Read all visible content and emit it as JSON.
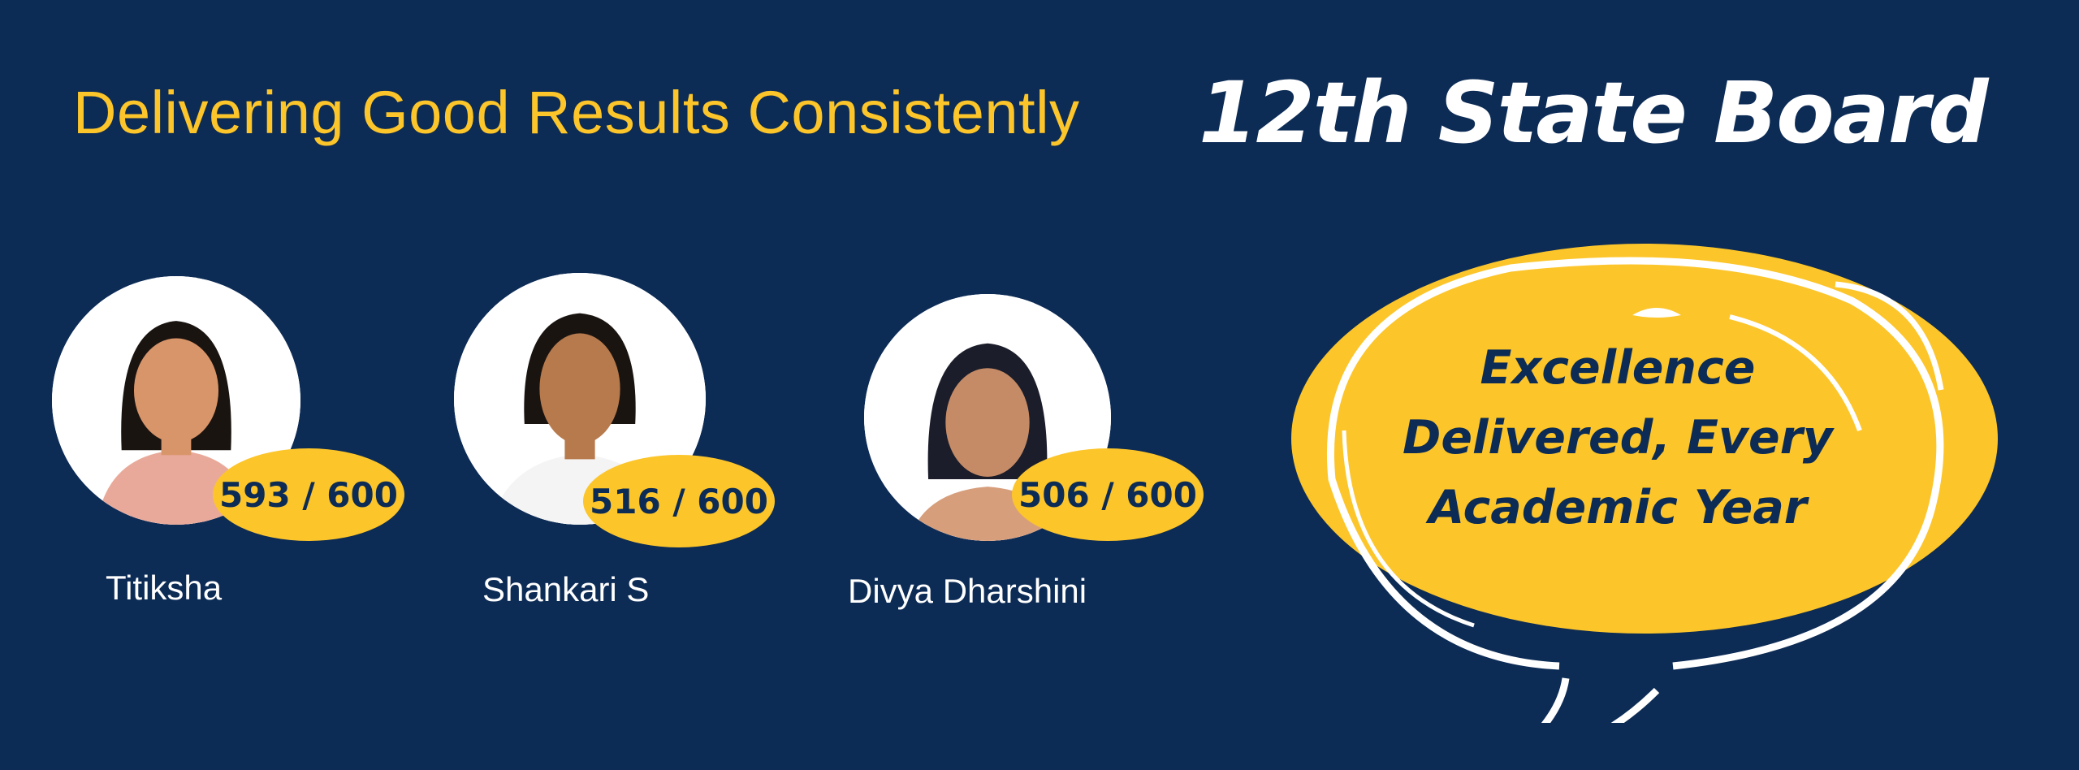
{
  "header": {
    "tagline": "Delivering Good Results Consistently",
    "board": "12th State Board"
  },
  "students": [
    {
      "name": "Titiksha",
      "score": "593 / 600"
    },
    {
      "name": "Shankari S",
      "score": "516 / 600"
    },
    {
      "name": "Divya Dharshini",
      "score": "506 / 600"
    }
  ],
  "bubble": {
    "lines": [
      "Excellence",
      "Delivered, Every",
      "Academic Year"
    ]
  },
  "colors": {
    "background": "#0c2b55",
    "accent": "#fcc52a",
    "text": "#ffffff"
  }
}
